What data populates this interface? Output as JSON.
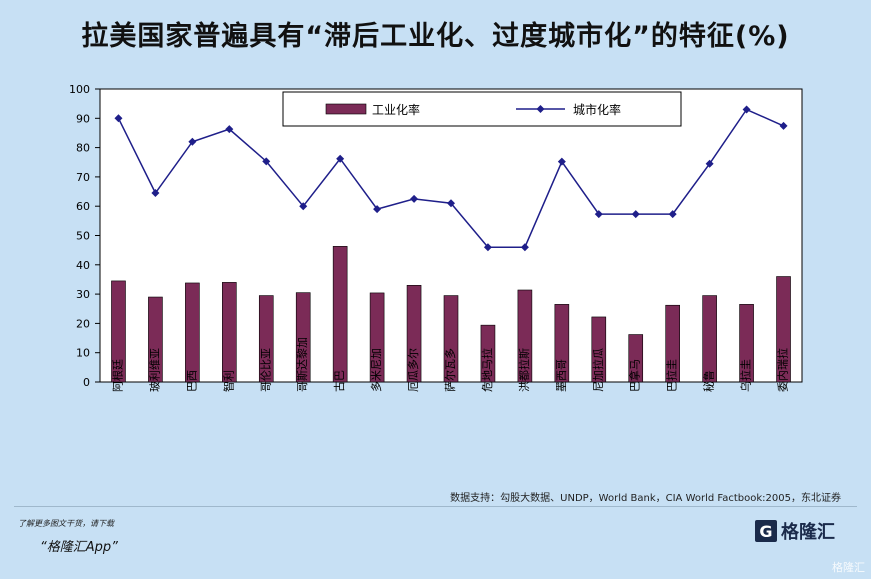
{
  "title": "拉美国家普遍具有“滞后工业化、过度城市化”的特征(%)",
  "source": "数据支持：勾股大数据、UNDP，World Bank，CIA World Factbook:2005，东北证券",
  "footer": {
    "promo_line1": "了解更多图文干货，请下载",
    "promo_line2": "“格隆汇App”",
    "logo_mark": "G",
    "logo_text": "格隆汇",
    "watermark": "格隆汇"
  },
  "chart_data": {
    "type": "bar+line",
    "categories": [
      "阿根廷",
      "玻利维亚",
      "巴西",
      "智利",
      "哥伦比亚",
      "哥斯达黎加",
      "古巴",
      "多米尼加",
      "厄瓜多尔",
      "萨尔瓦多",
      "危地马拉",
      "洪都拉斯",
      "墨西哥",
      "尼加拉瓜",
      "巴拿马",
      "巴拉圭",
      "秘鲁",
      "乌拉圭",
      "委内瑞拉"
    ],
    "series": [
      {
        "name": "工业化率",
        "type": "bar",
        "color": "#7b2b57",
        "values": [
          34.5,
          29,
          33.8,
          34,
          29.5,
          30.5,
          46.3,
          30.4,
          33,
          29.5,
          19.4,
          31.4,
          26.5,
          22.2,
          16.2,
          26.2,
          29.5,
          26.5,
          36
        ]
      },
      {
        "name": "城市化率",
        "type": "line",
        "color": "#1f1f8a",
        "values": [
          90,
          64.5,
          82,
          86.3,
          75.3,
          60,
          76.2,
          59,
          62.5,
          61,
          46,
          46,
          75.2,
          57.3,
          57.3,
          57.3,
          74.5,
          93,
          87.4
        ]
      }
    ],
    "ylim": [
      0,
      100
    ],
    "yticks": [
      0,
      10,
      20,
      30,
      40,
      50,
      60,
      70,
      80,
      90,
      100
    ],
    "legend_position": "top"
  }
}
